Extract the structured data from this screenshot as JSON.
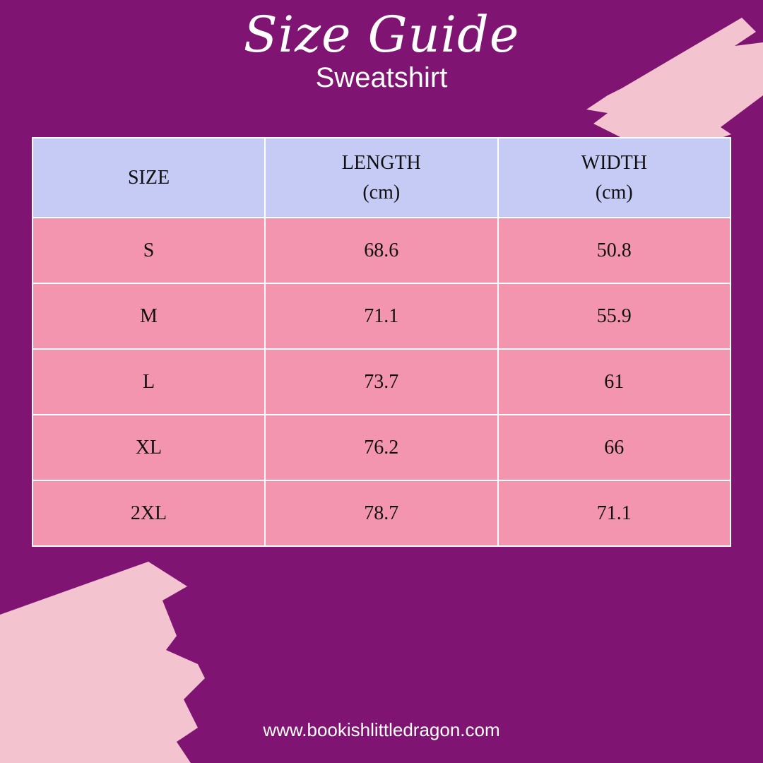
{
  "header": {
    "title": "Size Guide",
    "subtitle": "Sweatshirt"
  },
  "table": {
    "columns": [
      {
        "label": "SIZE",
        "unit": ""
      },
      {
        "label": "LENGTH",
        "unit": "(cm)"
      },
      {
        "label": "WIDTH",
        "unit": "(cm)"
      }
    ],
    "rows": [
      [
        "S",
        "68.6",
        "50.8"
      ],
      [
        "M",
        "71.1",
        "55.9"
      ],
      [
        "L",
        "73.7",
        "61"
      ],
      [
        "XL",
        "76.2",
        "66"
      ],
      [
        "2XL",
        "78.7",
        "71.1"
      ]
    ]
  },
  "footer": {
    "website": "www.bookishlittledragon.com"
  },
  "colors": {
    "background": "#7f1472",
    "header_fill": "#c5cbf5",
    "row_fill": "#f495b0",
    "brush": "#f3c4d0"
  }
}
